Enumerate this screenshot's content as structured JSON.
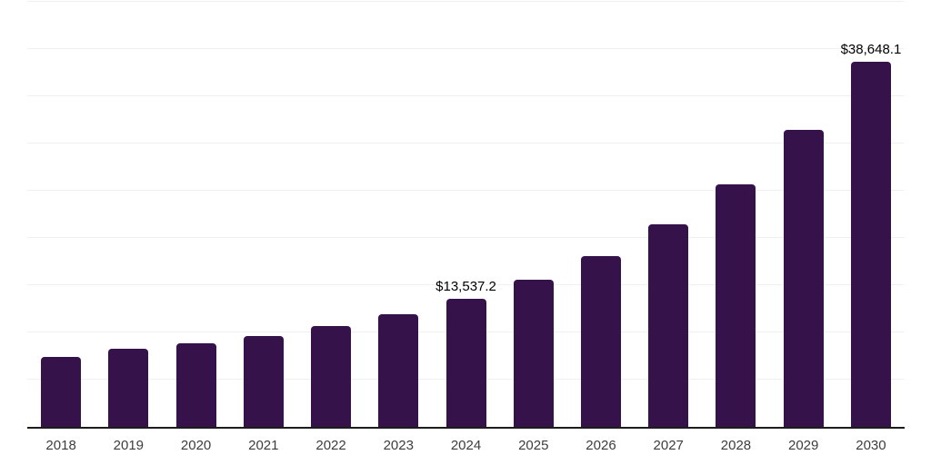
{
  "chart_data": {
    "type": "bar",
    "title": "",
    "xlabel": "",
    "ylabel": "",
    "categories": [
      "2018",
      "2019",
      "2020",
      "2021",
      "2022",
      "2023",
      "2024",
      "2025",
      "2026",
      "2027",
      "2028",
      "2029",
      "2030"
    ],
    "values": [
      7400,
      8270,
      8840,
      9610,
      10670,
      11920,
      13537.2,
      15570,
      18070,
      21430,
      25660,
      31430,
      38648.1
    ],
    "data_labels": [
      null,
      null,
      null,
      null,
      null,
      null,
      "$13,537.2",
      null,
      null,
      null,
      null,
      null,
      "$38,648.1"
    ],
    "ylim": [
      0,
      45000
    ],
    "gridline_step": 5000,
    "grid": "horizontal-only",
    "legend": "none",
    "y_tick_labels_visible": false,
    "colors": {
      "bar": "#36124B",
      "axis_line": "#1c1c1c",
      "gridline": "#f0f0f2",
      "x_tick_label": "#3d3d3d",
      "value_label": "#000000",
      "background": "#ffffff"
    }
  }
}
